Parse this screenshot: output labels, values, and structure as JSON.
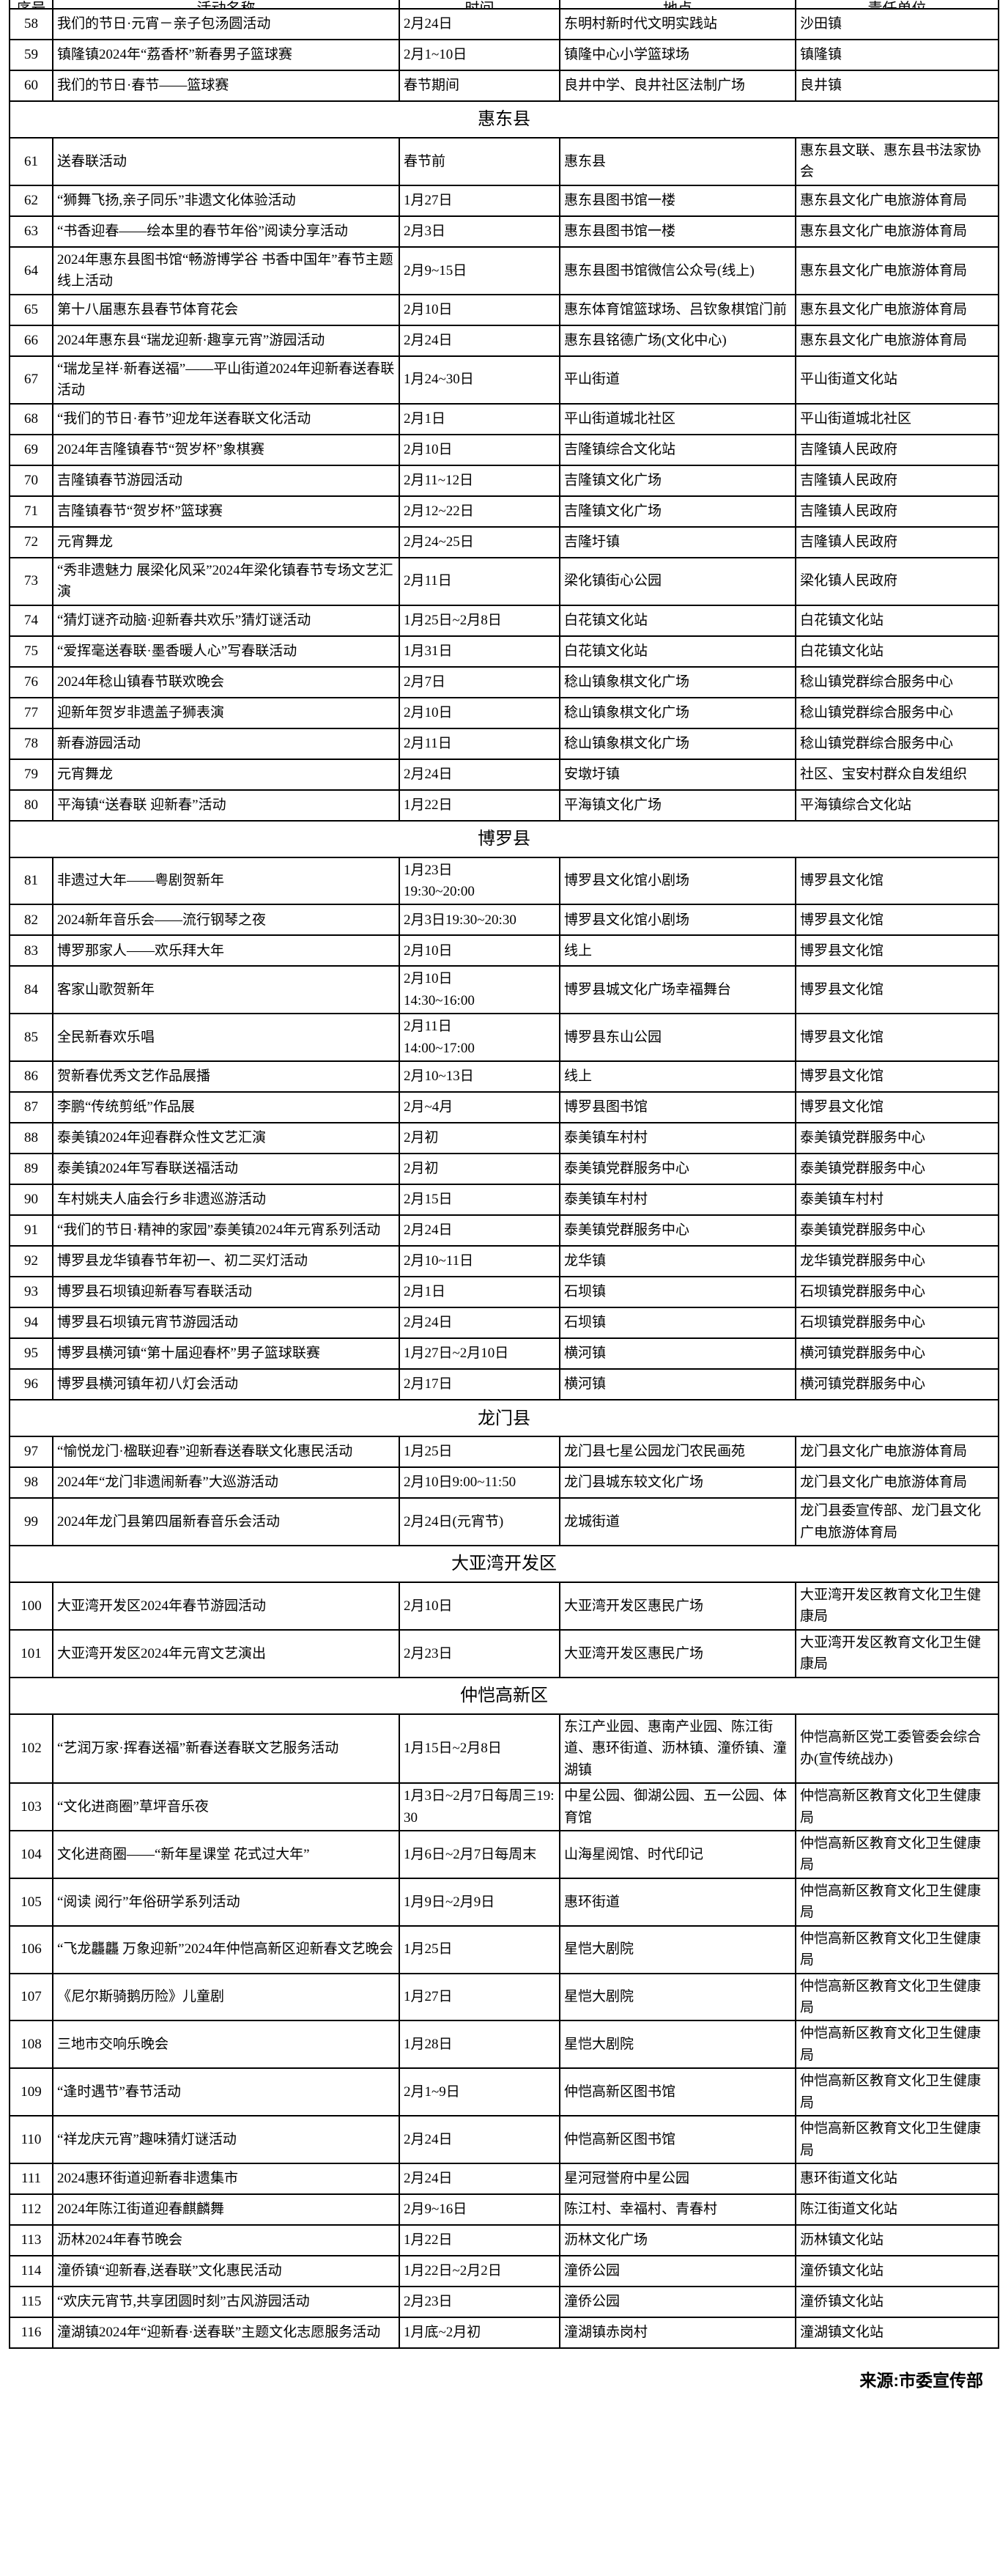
{
  "page": {
    "background": "#ffffff",
    "text_color": "#000000",
    "border_color": "#000000"
  },
  "table": {
    "clipped_header": {
      "cols": [
        "序号",
        "活动名称",
        "时间",
        "地点",
        "责任单位"
      ]
    },
    "sections": [
      {
        "title": "",
        "rows": [
          {
            "no": "58",
            "name": "我们的节日·元宵－亲子包汤圆活动",
            "date": "2月24日",
            "place": "东明村新时代文明实践站",
            "org": "沙田镇"
          },
          {
            "no": "59",
            "name": "镇隆镇2024年“荔香杯”新春男子篮球赛",
            "date": "2月1~10日",
            "place": "镇隆中心小学篮球场",
            "org": "镇隆镇"
          },
          {
            "no": "60",
            "name": "我们的节日·春节——篮球赛",
            "date": "春节期间",
            "place": "良井中学、良井社区法制广场",
            "org": "良井镇"
          }
        ]
      },
      {
        "title": "惠东县",
        "rows": [
          {
            "no": "61",
            "name": "送春联活动",
            "date": "春节前",
            "place": "惠东县",
            "org": "惠东县文联、惠东县书法家协会"
          },
          {
            "no": "62",
            "name": "“狮舞飞扬,亲子同乐”非遗文化体验活动",
            "date": "1月27日",
            "place": "惠东县图书馆一楼",
            "org": "惠东县文化广电旅游体育局"
          },
          {
            "no": "63",
            "name": "“书香迎春——绘本里的春节年俗”阅读分享活动",
            "date": "2月3日",
            "place": "惠东县图书馆一楼",
            "org": "惠东县文化广电旅游体育局"
          },
          {
            "no": "64",
            "name": "2024年惠东县图书馆“畅游博学谷 书香中国年”春节主题线上活动",
            "date": "2月9~15日",
            "place": "惠东县图书馆微信公众号(线上)",
            "org": "惠东县文化广电旅游体育局"
          },
          {
            "no": "65",
            "name": "第十八届惠东县春节体育花会",
            "date": "2月10日",
            "place": "惠东体育馆篮球场、吕钦象棋馆门前",
            "org": "惠东县文化广电旅游体育局"
          },
          {
            "no": "66",
            "name": "2024年惠东县“瑞龙迎新·趣享元宵”游园活动",
            "date": "2月24日",
            "place": "惠东县铭德广场(文化中心)",
            "org": "惠东县文化广电旅游体育局"
          },
          {
            "no": "67",
            "name": "“瑞龙呈祥·新春送福”——平山街道2024年迎新春送春联活动",
            "date": "1月24~30日",
            "place": "平山街道",
            "org": "平山街道文化站"
          },
          {
            "no": "68",
            "name": "“我们的节日·春节”迎龙年送春联文化活动",
            "date": "2月1日",
            "place": "平山街道城北社区",
            "org": "平山街道城北社区"
          },
          {
            "no": "69",
            "name": "2024年吉隆镇春节“贺岁杯”象棋赛",
            "date": "2月10日",
            "place": "吉隆镇综合文化站",
            "org": "吉隆镇人民政府"
          },
          {
            "no": "70",
            "name": "吉隆镇春节游园活动",
            "date": "2月11~12日",
            "place": "吉隆镇文化广场",
            "org": "吉隆镇人民政府"
          },
          {
            "no": "71",
            "name": "吉隆镇春节“贺岁杯”篮球赛",
            "date": "2月12~22日",
            "place": "吉隆镇文化广场",
            "org": "吉隆镇人民政府"
          },
          {
            "no": "72",
            "name": "元宵舞龙",
            "date": "2月24~25日",
            "place": "吉隆圩镇",
            "org": "吉隆镇人民政府"
          },
          {
            "no": "73",
            "name": "“秀非遗魅力 展梁化风采”2024年梁化镇春节专场文艺汇演",
            "date": "2月11日",
            "place": "梁化镇街心公园",
            "org": "梁化镇人民政府"
          },
          {
            "no": "74",
            "name": "“猜灯谜齐动脑·迎新春共欢乐”猜灯谜活动",
            "date": "1月25日~2月8日",
            "place": "白花镇文化站",
            "org": "白花镇文化站"
          },
          {
            "no": "75",
            "name": "“爱挥毫送春联·墨香暖人心”写春联活动",
            "date": "1月31日",
            "place": "白花镇文化站",
            "org": "白花镇文化站"
          },
          {
            "no": "76",
            "name": "2024年稔山镇春节联欢晚会",
            "date": "2月7日",
            "place": "稔山镇象棋文化广场",
            "org": "稔山镇党群综合服务中心"
          },
          {
            "no": "77",
            "name": "迎新年贺岁非遗盖子狮表演",
            "date": "2月10日",
            "place": "稔山镇象棋文化广场",
            "org": "稔山镇党群综合服务中心"
          },
          {
            "no": "78",
            "name": "新春游园活动",
            "date": "2月11日",
            "place": "稔山镇象棋文化广场",
            "org": "稔山镇党群综合服务中心"
          },
          {
            "no": "79",
            "name": "元宵舞龙",
            "date": "2月24日",
            "place": "安墩圩镇",
            "org": "社区、宝安村群众自发组织"
          },
          {
            "no": "80",
            "name": "平海镇“送春联 迎新春”活动",
            "date": "1月22日",
            "place": "平海镇文化广场",
            "org": "平海镇综合文化站"
          }
        ]
      },
      {
        "title": "博罗县",
        "rows": [
          {
            "no": "81",
            "name": "非遗过大年——粤剧贺新年",
            "date": "1月23日\n19:30~20:00",
            "place": "博罗县文化馆小剧场",
            "org": "博罗县文化馆"
          },
          {
            "no": "82",
            "name": "2024新年音乐会——流行钢琴之夜",
            "date": "2月3日19:30~20:30",
            "place": "博罗县文化馆小剧场",
            "org": "博罗县文化馆"
          },
          {
            "no": "83",
            "name": "博罗那家人——欢乐拜大年",
            "date": "2月10日",
            "place": "线上",
            "org": "博罗县文化馆"
          },
          {
            "no": "84",
            "name": "客家山歌贺新年",
            "date": "2月10日\n14:30~16:00",
            "place": "博罗县城文化广场幸福舞台",
            "org": "博罗县文化馆"
          },
          {
            "no": "85",
            "name": "全民新春欢乐唱",
            "date": "2月11日\n14:00~17:00",
            "place": "博罗县东山公园",
            "org": "博罗县文化馆"
          },
          {
            "no": "86",
            "name": "贺新春优秀文艺作品展播",
            "date": "2月10~13日",
            "place": "线上",
            "org": "博罗县文化馆"
          },
          {
            "no": "87",
            "name": "李鹏“传统剪纸”作品展",
            "date": "2月~4月",
            "place": "博罗县图书馆",
            "org": "博罗县文化馆"
          },
          {
            "no": "88",
            "name": "泰美镇2024年迎春群众性文艺汇演",
            "date": "2月初",
            "place": "泰美镇车村村",
            "org": "泰美镇党群服务中心"
          },
          {
            "no": "89",
            "name": "泰美镇2024年写春联送福活动",
            "date": "2月初",
            "place": "泰美镇党群服务中心",
            "org": "泰美镇党群服务中心"
          },
          {
            "no": "90",
            "name": "车村姚夫人庙会行乡非遗巡游活动",
            "date": "2月15日",
            "place": "泰美镇车村村",
            "org": "泰美镇车村村"
          },
          {
            "no": "91",
            "name": "“我们的节日·精神的家园”泰美镇2024年元宵系列活动",
            "date": "2月24日",
            "place": "泰美镇党群服务中心",
            "org": "泰美镇党群服务中心"
          },
          {
            "no": "92",
            "name": "博罗县龙华镇春节年初一、初二买灯活动",
            "date": "2月10~11日",
            "place": "龙华镇",
            "org": "龙华镇党群服务中心"
          },
          {
            "no": "93",
            "name": "博罗县石坝镇迎新春写春联活动",
            "date": "2月1日",
            "place": "石坝镇",
            "org": "石坝镇党群服务中心"
          },
          {
            "no": "94",
            "name": "博罗县石坝镇元宵节游园活动",
            "date": "2月24日",
            "place": "石坝镇",
            "org": "石坝镇党群服务中心"
          },
          {
            "no": "95",
            "name": "博罗县横河镇“第十届迎春杯”男子篮球联赛",
            "date": "1月27日~2月10日",
            "place": "横河镇",
            "org": "横河镇党群服务中心"
          },
          {
            "no": "96",
            "name": "博罗县横河镇年初八灯会活动",
            "date": "2月17日",
            "place": "横河镇",
            "org": "横河镇党群服务中心"
          }
        ]
      },
      {
        "title": "龙门县",
        "rows": [
          {
            "no": "97",
            "name": "“愉悦龙门·楹联迎春”迎新春送春联文化惠民活动",
            "date": "1月25日",
            "place": "龙门县七星公园龙门农民画苑",
            "org": "龙门县文化广电旅游体育局"
          },
          {
            "no": "98",
            "name": "2024年“龙门非遗闹新春”大巡游活动",
            "date": "2月10日9:00~11:50",
            "place": "龙门县城东较文化广场",
            "org": "龙门县文化广电旅游体育局"
          },
          {
            "no": "99",
            "name": "2024年龙门县第四届新春音乐会活动",
            "date": "2月24日(元宵节)",
            "place": "龙城街道",
            "org": "龙门县委宣传部、龙门县文化广电旅游体育局"
          }
        ]
      },
      {
        "title": "大亚湾开发区",
        "rows": [
          {
            "no": "100",
            "name": "大亚湾开发区2024年春节游园活动",
            "date": "2月10日",
            "place": "大亚湾开发区惠民广场",
            "org": "大亚湾开发区教育文化卫生健康局"
          },
          {
            "no": "101",
            "name": "大亚湾开发区2024年元宵文艺演出",
            "date": "2月23日",
            "place": "大亚湾开发区惠民广场",
            "org": "大亚湾开发区教育文化卫生健康局"
          }
        ]
      },
      {
        "title": "仲恺高新区",
        "rows": [
          {
            "no": "102",
            "name": "“艺润万家·挥春送福”新春送春联文艺服务活动",
            "date": "1月15日~2月8日",
            "place": "东江产业园、惠南产业园、陈江街道、惠环街道、沥林镇、潼侨镇、潼湖镇",
            "org": "仲恺高新区党工委管委会综合办(宣传统战办)"
          },
          {
            "no": "103",
            "name": "“文化进商圈”草坪音乐夜",
            "date": "1月3日~2月7日每周三19:30",
            "place": "中星公园、御湖公园、五一公园、体育馆",
            "org": "仲恺高新区教育文化卫生健康局"
          },
          {
            "no": "104",
            "name": "文化进商圈——“新年星课堂 花式过大年”",
            "date": "1月6日~2月7日每周末",
            "place": "山海星阅馆、时代印记",
            "org": "仲恺高新区教育文化卫生健康局"
          },
          {
            "no": "105",
            "name": "“阅读 阅行”年俗研学系列活动",
            "date": "1月9日~2月9日",
            "place": "惠环街道",
            "org": "仲恺高新区教育文化卫生健康局"
          },
          {
            "no": "106",
            "name": "“飞龙龘龘 万象迎新”2024年仲恺高新区迎新春文艺晚会",
            "date": "1月25日",
            "place": "星恺大剧院",
            "org": "仲恺高新区教育文化卫生健康局"
          },
          {
            "no": "107",
            "name": "《尼尔斯骑鹅历险》儿童剧",
            "date": "1月27日",
            "place": "星恺大剧院",
            "org": "仲恺高新区教育文化卫生健康局"
          },
          {
            "no": "108",
            "name": "三地市交响乐晚会",
            "date": "1月28日",
            "place": "星恺大剧院",
            "org": "仲恺高新区教育文化卫生健康局"
          },
          {
            "no": "109",
            "name": "“逢时遇节”春节活动",
            "date": "2月1~9日",
            "place": "仲恺高新区图书馆",
            "org": "仲恺高新区教育文化卫生健康局"
          },
          {
            "no": "110",
            "name": "“祥龙庆元宵”趣味猜灯谜活动",
            "date": "2月24日",
            "place": "仲恺高新区图书馆",
            "org": "仲恺高新区教育文化卫生健康局"
          },
          {
            "no": "111",
            "name": "2024惠环街道迎新春非遗集市",
            "date": "2月24日",
            "place": "星河冠誉府中星公园",
            "org": "惠环街道文化站"
          },
          {
            "no": "112",
            "name": "2024年陈江街道迎春麒麟舞",
            "date": "2月9~16日",
            "place": "陈江村、幸福村、青春村",
            "org": "陈江街道文化站"
          },
          {
            "no": "113",
            "name": "沥林2024年春节晚会",
            "date": "1月22日",
            "place": "沥林文化广场",
            "org": "沥林镇文化站"
          },
          {
            "no": "114",
            "name": "潼侨镇“迎新春,送春联”文化惠民活动",
            "date": "1月22日~2月2日",
            "place": "潼侨公园",
            "org": "潼侨镇文化站"
          },
          {
            "no": "115",
            "name": "“欢庆元宵节,共享团圆时刻”古风游园活动",
            "date": "2月23日",
            "place": "潼侨公园",
            "org": "潼侨镇文化站"
          },
          {
            "no": "116",
            "name": "潼湖镇2024年“迎新春·送春联”主题文化志愿服务活动",
            "date": "1月底~2月初",
            "place": "潼湖镇赤岗村",
            "org": "潼湖镇文化站"
          }
        ]
      }
    ]
  },
  "footer": {
    "source_label": "来源:市委宣传部"
  }
}
